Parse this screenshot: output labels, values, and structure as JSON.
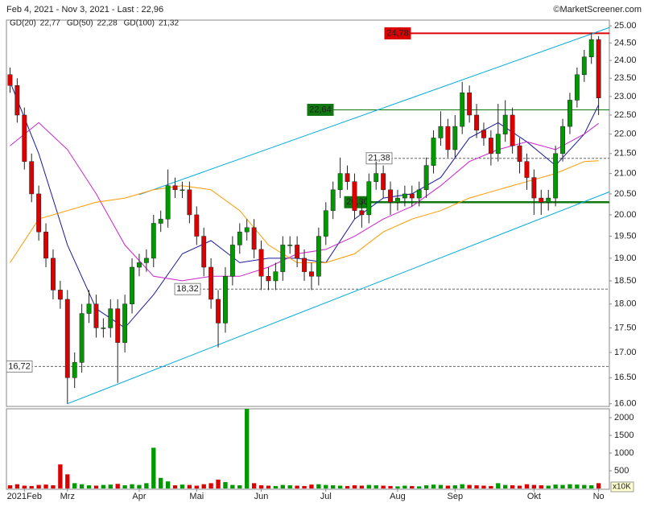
{
  "chart_data": {
    "type": "candlestick",
    "title": "Feb 4, 2021 - Nov 3, 2021 - Last : 22,96",
    "source": "©MarketScreener.com",
    "log_scale": true,
    "up_color": "#009900",
    "down_color": "#dd0000",
    "xlim": [
      -0.5,
      83.5
    ],
    "ylim": [
      15.95,
      25.17
    ],
    "yticks": [
      {
        "value": 16,
        "label": "16.00"
      },
      {
        "value": 16.5,
        "label": "16.50"
      },
      {
        "value": 17,
        "label": "17.00"
      },
      {
        "value": 17.5,
        "label": "17.50"
      },
      {
        "value": 18,
        "label": "18.00"
      },
      {
        "value": 18.5,
        "label": "18.50"
      },
      {
        "value": 19,
        "label": "19.00"
      },
      {
        "value": 19.5,
        "label": "19.50"
      },
      {
        "value": 20,
        "label": "20.00"
      },
      {
        "value": 20.5,
        "label": "20.50"
      },
      {
        "value": 21,
        "label": "21.00"
      },
      {
        "value": 21.5,
        "label": "21.50"
      },
      {
        "value": 22,
        "label": "22.00"
      },
      {
        "value": 22.5,
        "label": "22.50"
      },
      {
        "value": 23,
        "label": "23.00"
      },
      {
        "value": 23.5,
        "label": "23.50"
      },
      {
        "value": 24,
        "label": "24.00"
      },
      {
        "value": 24.5,
        "label": "24.50"
      },
      {
        "value": 25,
        "label": "25.00"
      }
    ],
    "categories": [
      null,
      null,
      "2021Feb",
      null,
      null,
      null,
      null,
      null,
      "Mrz",
      null,
      null,
      null,
      null,
      null,
      null,
      null,
      null,
      null,
      "Apr",
      null,
      null,
      null,
      null,
      null,
      null,
      null,
      "Mai",
      null,
      null,
      null,
      null,
      null,
      null,
      null,
      null,
      "Jun",
      null,
      null,
      null,
      null,
      null,
      null,
      null,
      null,
      "Jul",
      null,
      null,
      null,
      null,
      null,
      null,
      null,
      null,
      null,
      "Aug",
      null,
      null,
      null,
      null,
      null,
      null,
      null,
      "Sep",
      null,
      null,
      null,
      null,
      null,
      null,
      null,
      null,
      null,
      null,
      "Okt",
      null,
      null,
      null,
      null,
      null,
      null,
      null,
      null,
      "No"
    ],
    "open": [
      23.6,
      23.3,
      22.5,
      21.3,
      20.5,
      19.6,
      19.0,
      18.3,
      18.1,
      16.5,
      16.8,
      17.8,
      18.0,
      17.5,
      17.5,
      17.9,
      17.2,
      18.0,
      18.8,
      18.9,
      19.0,
      19.8,
      19.9,
      20.7,
      20.6,
      20.6,
      20.0,
      19.5,
      18.8,
      18.1,
      17.6,
      18.6,
      19.3,
      19.6,
      19.7,
      19.2,
      18.6,
      18.5,
      18.7,
      19.3,
      19.3,
      19.0,
      18.7,
      18.6,
      19.5,
      20.1,
      20.6,
      21.0,
      20.8,
      20.1,
      20.0,
      20.8,
      21.0,
      20.6,
      20.3,
      20.4,
      20.5,
      20.4,
      20.6,
      21.2,
      21.9,
      22.2,
      21.6,
      22.2,
      23.1,
      22.5,
      22.1,
      21.9,
      21.5,
      22.0,
      22.5,
      21.7,
      21.3,
      20.9,
      20.4,
      20.3,
      20.4,
      21.5,
      22.2,
      22.9,
      23.6,
      24.1,
      24.6
    ],
    "high": [
      23.8,
      23.5,
      22.7,
      21.5,
      20.7,
      19.8,
      19.2,
      18.5,
      18.3,
      17.0,
      18.0,
      18.3,
      18.2,
      17.7,
      18.1,
      18.1,
      18.2,
      19.0,
      19.1,
      19.2,
      20.0,
      20.1,
      21.1,
      20.9,
      20.8,
      20.8,
      20.2,
      19.7,
      19.0,
      18.3,
      18.8,
      19.5,
      19.8,
      19.9,
      19.9,
      19.4,
      18.8,
      18.9,
      19.5,
      19.5,
      19.5,
      19.2,
      18.9,
      19.7,
      20.3,
      20.8,
      21.4,
      21.2,
      21.0,
      20.3,
      21.0,
      21.3,
      21.2,
      20.8,
      20.6,
      20.7,
      20.7,
      20.8,
      21.4,
      22.1,
      22.6,
      22.4,
      22.5,
      23.4,
      23.3,
      22.8,
      22.3,
      22.1,
      22.8,
      22.9,
      22.7,
      21.9,
      21.5,
      21.1,
      20.6,
      20.6,
      21.7,
      22.4,
      23.1,
      23.8,
      24.3,
      24.8,
      24.7
    ],
    "low": [
      23.1,
      22.3,
      21.1,
      20.3,
      19.4,
      18.8,
      18.1,
      17.9,
      16.0,
      16.3,
      16.6,
      17.6,
      17.3,
      17.3,
      17.3,
      16.4,
      17.0,
      17.8,
      18.6,
      18.7,
      18.8,
      19.6,
      19.7,
      20.4,
      20.4,
      19.8,
      19.3,
      18.6,
      17.9,
      17.1,
      17.4,
      18.4,
      19.1,
      19.4,
      19.0,
      18.3,
      18.3,
      18.3,
      18.5,
      19.1,
      18.8,
      18.5,
      18.3,
      18.4,
      19.3,
      19.9,
      20.4,
      20.6,
      19.9,
      19.7,
      19.8,
      20.6,
      20.4,
      20.0,
      20.1,
      20.2,
      20.2,
      20.2,
      20.4,
      21.0,
      21.7,
      21.4,
      21.4,
      22.0,
      22.3,
      21.9,
      21.7,
      21.2,
      21.3,
      21.8,
      21.5,
      21.0,
      20.6,
      20.0,
      20.0,
      20.1,
      20.2,
      21.3,
      22.0,
      22.7,
      23.4,
      23.9,
      22.5
    ],
    "close": [
      23.3,
      22.5,
      21.3,
      20.5,
      19.6,
      19.0,
      18.3,
      18.1,
      16.5,
      16.8,
      17.8,
      18.0,
      17.5,
      17.5,
      17.9,
      17.2,
      18.0,
      18.8,
      18.9,
      19.0,
      19.8,
      19.9,
      20.7,
      20.6,
      20.6,
      20.0,
      19.5,
      18.8,
      18.1,
      17.6,
      18.6,
      19.3,
      19.6,
      19.7,
      19.2,
      18.6,
      18.5,
      18.7,
      19.3,
      19.3,
      19.0,
      18.7,
      18.6,
      19.5,
      20.1,
      20.6,
      21.0,
      20.8,
      20.1,
      20.0,
      20.8,
      21.0,
      20.6,
      20.3,
      20.4,
      20.5,
      20.4,
      20.6,
      21.2,
      21.9,
      22.2,
      21.6,
      22.2,
      23.1,
      22.5,
      22.1,
      21.9,
      21.5,
      22.0,
      22.5,
      21.7,
      21.3,
      20.9,
      20.4,
      20.3,
      20.4,
      21.5,
      22.2,
      22.9,
      23.6,
      24.1,
      24.6,
      22.96
    ],
    "series": [
      {
        "name": "GD(20)",
        "legend_value": "22,77",
        "color": "#1a1aa0",
        "x": [
          0,
          4,
          8,
          12,
          16,
          20,
          24,
          28,
          32,
          36,
          40,
          44,
          48,
          52,
          56,
          60,
          64,
          68,
          72,
          76,
          80,
          82
        ],
        "values": [
          23.4,
          21.5,
          19.3,
          17.9,
          17.5,
          18.2,
          19.1,
          19.4,
          18.9,
          19.0,
          19.0,
          18.9,
          19.9,
          20.4,
          20.5,
          20.9,
          21.9,
          22.3,
          21.8,
          21.2,
          22.0,
          22.77
        ]
      },
      {
        "name": "GD(50)",
        "legend_value": "22,28",
        "color": "#cc22cc",
        "x": [
          0,
          4,
          8,
          12,
          16,
          20,
          24,
          28,
          32,
          36,
          40,
          44,
          48,
          52,
          56,
          60,
          64,
          68,
          72,
          76,
          80,
          82
        ],
        "values": [
          21.7,
          22.3,
          21.6,
          20.5,
          19.3,
          18.6,
          18.5,
          18.6,
          18.6,
          18.8,
          19.1,
          19.2,
          19.5,
          19.9,
          20.2,
          20.7,
          21.3,
          21.6,
          21.8,
          21.6,
          22.0,
          22.28
        ]
      },
      {
        "name": "GD(100)",
        "legend_value": "21,32",
        "color": "#ff9900",
        "x": [
          0,
          4,
          8,
          12,
          16,
          20,
          24,
          28,
          32,
          36,
          40,
          44,
          48,
          52,
          56,
          60,
          64,
          68,
          72,
          76,
          80,
          82
        ],
        "values": [
          18.9,
          19.9,
          20.1,
          20.3,
          20.4,
          20.6,
          20.7,
          20.6,
          20.1,
          19.3,
          18.9,
          18.9,
          19.1,
          19.6,
          19.9,
          20.1,
          20.4,
          20.6,
          20.8,
          21.0,
          21.3,
          21.32
        ]
      }
    ],
    "trendlines": [
      {
        "color": "#00aadd",
        "x": [
          18,
          83.5
        ],
        "values": [
          20.48,
          24.95
        ]
      },
      {
        "color": "#00aadd",
        "x": [
          8,
          83.5
        ],
        "values": [
          16.0,
          20.55
        ]
      }
    ],
    "levels": [
      {
        "value": 24.78,
        "label": "24,78",
        "color": "#dd0000",
        "style": "label-filled"
      },
      {
        "value": 22.64,
        "label": "22,64",
        "color": "#117711",
        "style": "label-filled"
      },
      {
        "value": 21.38,
        "label": "21,38",
        "color": "#555555",
        "style": "dashed"
      },
      {
        "value": 20.3,
        "label": "20,30",
        "color": "#117711",
        "style": "thick"
      },
      {
        "value": 18.32,
        "label": "18,32",
        "color": "#555555",
        "style": "dashed"
      },
      {
        "value": 16.72,
        "label": "16,72",
        "color": "#555555",
        "style": "dashed"
      }
    ],
    "volume": {
      "unit_label": "x10K",
      "ylim": [
        0,
        2250
      ],
      "yticks": [
        500,
        1000,
        1500,
        2000
      ],
      "values": [
        90,
        120,
        80,
        70,
        100,
        110,
        90,
        680,
        400,
        150,
        120,
        90,
        80,
        100,
        110,
        130,
        90,
        120,
        100,
        150,
        1150,
        300,
        200,
        90,
        110,
        100,
        80,
        120,
        150,
        250,
        180,
        100,
        90,
        2250,
        150,
        90,
        80,
        70,
        100,
        90,
        80,
        70,
        110,
        120,
        100,
        90,
        80,
        70,
        90,
        80,
        100,
        90,
        80,
        70,
        60,
        80,
        70,
        60,
        90,
        110,
        100,
        80,
        90,
        120,
        100,
        90,
        80,
        70,
        150,
        100,
        90,
        80,
        120,
        100,
        90,
        80,
        110,
        100,
        120,
        110,
        100,
        90,
        150
      ]
    }
  }
}
